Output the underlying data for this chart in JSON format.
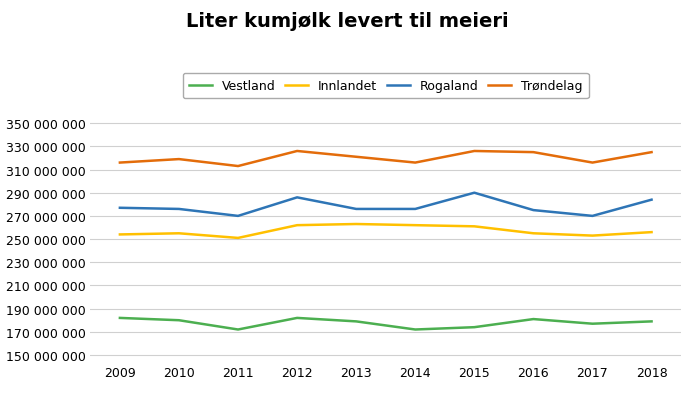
{
  "title": "Liter kumjølk levert til meieri",
  "years": [
    2009,
    2010,
    2011,
    2012,
    2013,
    2014,
    2015,
    2016,
    2017,
    2018
  ],
  "series": {
    "Vestland": {
      "color": "#4CAF50",
      "values": [
        182000000,
        180000000,
        172000000,
        182000000,
        179000000,
        172000000,
        174000000,
        181000000,
        177000000,
        179000000
      ]
    },
    "Innlandet": {
      "color": "#FFC000",
      "values": [
        254000000,
        255000000,
        251000000,
        262000000,
        263000000,
        262000000,
        261000000,
        255000000,
        253000000,
        256000000
      ]
    },
    "Rogaland": {
      "color": "#2E75B6",
      "values": [
        277000000,
        276000000,
        270000000,
        286000000,
        276000000,
        276000000,
        290000000,
        275000000,
        270000000,
        284000000
      ]
    },
    "Trøndelag": {
      "color": "#E36C0A",
      "values": [
        316000000,
        319000000,
        313000000,
        326000000,
        321000000,
        316000000,
        326000000,
        325000000,
        316000000,
        325000000
      ]
    }
  },
  "ylim": [
    145000000,
    360000000
  ],
  "yticks": [
    150000000,
    170000000,
    190000000,
    210000000,
    230000000,
    250000000,
    270000000,
    290000000,
    310000000,
    330000000,
    350000000
  ],
  "background_color": "#ffffff",
  "grid_color": "#d0d0d0",
  "legend_order": [
    "Vestland",
    "Innlandet",
    "Rogaland",
    "Trøndelag"
  ]
}
